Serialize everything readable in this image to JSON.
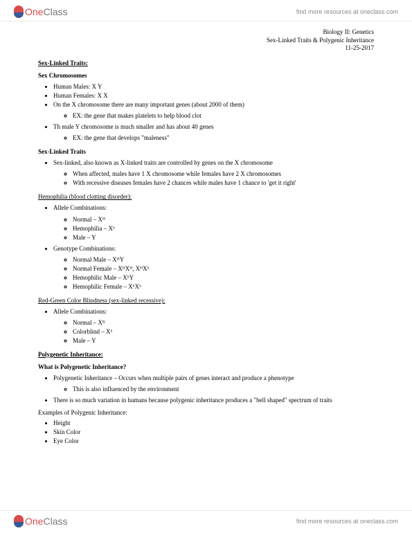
{
  "brand": {
    "part1": "One",
    "part2": "Class"
  },
  "find_link": "find more resources at oneclass.com",
  "meta": {
    "course": "Biology II: Genetics",
    "topic": "Sex-Linked Traits & Polygenic Inheritance",
    "date": "11-25-2017"
  },
  "sections": {
    "slt_title": "Sex-Linked Traits:",
    "sex_chrom_title": "Sex Chromosomes",
    "sc1": "Human Males: X Y",
    "sc2": "Human Females: X X",
    "sc3": "On the X chromosome there are many important genes (about 2000 of them)",
    "sc3a": "EX: the gene that makes platelets to help blood clot",
    "sc4": "Th male Y chromosome is much smaller and has about 40 genes",
    "sc4a": "EX: the gene that develops \"maleness\"",
    "slt2_title": "Sex-Linked Traits",
    "slt_a": "Sex-linked, also known as X-linked traits are controlled by genes on the X chromosome",
    "slt_a1": "When affected, males have 1 X chromosome while females have 2 X chromosomes",
    "slt_a2": "With recessive diseases females have 2 chances while males have 1 chance to 'get it right'",
    "hemo_title": "Hemophilia (blood clotting disorder):",
    "hemo_ac": "Allele Combinations:",
    "hemo_ac1": "Normal – Xᴴ",
    "hemo_ac2": "Hemophilia – Xʰ",
    "hemo_ac3": "Male – Y",
    "hemo_gc": "Genotype Combinations:",
    "hemo_gc1": "Normal Male – XᴴY",
    "hemo_gc2": "Normal Female – XᴴXᴴ, XᴴXʰ",
    "hemo_gc3": "Hemophilic Male – XʰY",
    "hemo_gc4": "Hemophilic Female – XʰXʰ",
    "rg_title": "Red-Green Color Blindness (sex-linked recessive):",
    "rg_ac": "Allele Combinations:",
    "rg_ac1": "Normal – Xᴮ",
    "rg_ac2": "Colorblind – Xᵇ",
    "rg_ac3": "Male – Y",
    "poly_title": "Polygenetic Inheritance:",
    "poly_q": "What is Polygenetic Inheritance?",
    "poly_a": "Polygenetic Inheritance – Occurs when multiple pairs of genes interact and produce a phenotype",
    "poly_a1": "This is also influenced by the environment",
    "poly_b": "There is so much variation in humans because polygenic inheritance produces a \"bell shaped\" spectrum of traits",
    "poly_ex": "Examples of Polygenic Inheritance:",
    "poly_ex1": "Height",
    "poly_ex2": "Skin Color",
    "poly_ex3": "Eye Color"
  },
  "colors": {
    "text": "#000000",
    "bg": "#ffffff",
    "border": "#e8e8e8",
    "logo_red": "#d94a4a",
    "logo_blue": "#3a5a9a",
    "link_gray": "#888888"
  }
}
